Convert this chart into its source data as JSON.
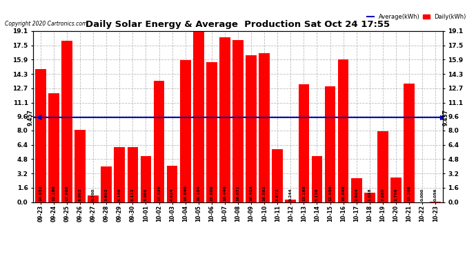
{
  "title": "Daily Solar Energy & Average  Production Sat Oct 24 17:55",
  "copyright": "Copyright 2020 Cartronics.com",
  "legend_avg": "Average(kWh)",
  "legend_daily": "Daily(kWh)",
  "average_value": 9.457,
  "average_label": "9.457",
  "categories": [
    "09-23",
    "09-24",
    "09-25",
    "09-26",
    "09-27",
    "09-28",
    "09-29",
    "09-30",
    "10-01",
    "10-02",
    "10-03",
    "10-04",
    "10-05",
    "10-06",
    "10-07",
    "10-08",
    "10-09",
    "10-10",
    "10-11",
    "10-12",
    "10-13",
    "10-14",
    "10-15",
    "10-16",
    "10-17",
    "10-18",
    "10-19",
    "10-20",
    "10-21",
    "10-22",
    "10-23"
  ],
  "values": [
    14.832,
    12.18,
    17.988,
    8.062,
    0.7,
    3.962,
    6.148,
    6.112,
    5.096,
    13.536,
    4.024,
    15.84,
    19.104,
    15.608,
    18.44,
    18.072,
    16.416,
    16.592,
    5.872,
    0.244,
    13.168,
    5.156,
    12.936,
    15.948,
    2.664,
    1.028,
    7.88,
    2.766,
    13.208,
    0.0,
    0.056
  ],
  "bar_color": "#ff0000",
  "avg_line_color": "#0000cc",
  "background_color": "#ffffff",
  "plot_bg_color": "#ffffff",
  "grid_color": "#bbbbbb",
  "title_color": "#000000",
  "ylim": [
    0.0,
    19.1
  ],
  "yticks": [
    0.0,
    1.6,
    3.2,
    4.8,
    6.4,
    8.0,
    9.6,
    11.1,
    12.7,
    14.3,
    15.9,
    17.5,
    19.1
  ]
}
